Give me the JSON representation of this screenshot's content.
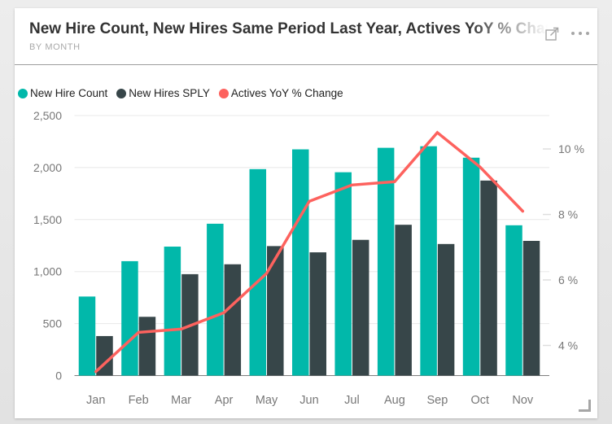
{
  "header": {
    "title": "New Hire Count, New Hires Same Period Last Year, Actives YoY % Change",
    "subtitle": "BY MONTH",
    "icons": {
      "focus_mode": "focus-mode-expand",
      "more_options": "ellipsis"
    }
  },
  "legend": {
    "items": [
      {
        "label": "New Hire Count",
        "color": "#01B8AA"
      },
      {
        "label": "New Hires SPLY",
        "color": "#374649"
      },
      {
        "label": "Actives YoY % Change",
        "color": "#FD625E"
      }
    ]
  },
  "chart_data": {
    "type": "combo bar+line",
    "title": "New Hire Count, New Hires Same Period Last Year, Actives YoY % Change by Month",
    "categories": [
      "Jan",
      "Feb",
      "Mar",
      "Apr",
      "May",
      "Jun",
      "Jul",
      "Aug",
      "Sep",
      "Oct",
      "Nov"
    ],
    "series": [
      {
        "name": "New Hire Count",
        "type": "bar",
        "axis": "left",
        "color": "#01B8AA",
        "values": [
          760,
          1100,
          1240,
          1460,
          1985,
          2175,
          1955,
          2190,
          2205,
          2095,
          1445
        ]
      },
      {
        "name": "New Hires SPLY",
        "type": "bar",
        "axis": "left",
        "color": "#374649",
        "values": [
          380,
          565,
          975,
          1070,
          1245,
          1185,
          1305,
          1450,
          1265,
          1875,
          1295
        ]
      },
      {
        "name": "Actives YoY % Change",
        "type": "line",
        "axis": "right",
        "color": "#FD625E",
        "values": [
          3.2,
          4.4,
          4.5,
          5.0,
          6.2,
          8.4,
          8.9,
          9.0,
          10.5,
          9.45,
          8.1
        ]
      }
    ],
    "y_left": {
      "min": 0,
      "max": 2500,
      "ticks": [
        0,
        500,
        1000,
        1500,
        2000,
        2500
      ],
      "tick_labels": [
        "0",
        "500",
        "1,000",
        "1,500",
        "2,000",
        "2,500"
      ]
    },
    "y_right": {
      "min": 3.08,
      "max": 11.02,
      "ticks": [
        4,
        6,
        8,
        10
      ],
      "tick_labels": [
        "4 %",
        "6 %",
        "8 %",
        "10 %"
      ]
    },
    "grid": "horizontal (left axis)",
    "legend_position": "top-left"
  },
  "colors": {
    "bar_primary": "#01B8AA",
    "bar_secondary": "#374649",
    "line": "#FD625E",
    "card_bg": "#FFFFFF",
    "page_bg": "#E9E9E9",
    "axis_text": "#777777",
    "gridline": "#E8E8E8",
    "axis_line": "#7F7F7F",
    "title_text": "#333333",
    "subtitle_text": "#A9A9A9",
    "divider": "#9E9E9E",
    "icon": "#A6A6A6"
  }
}
